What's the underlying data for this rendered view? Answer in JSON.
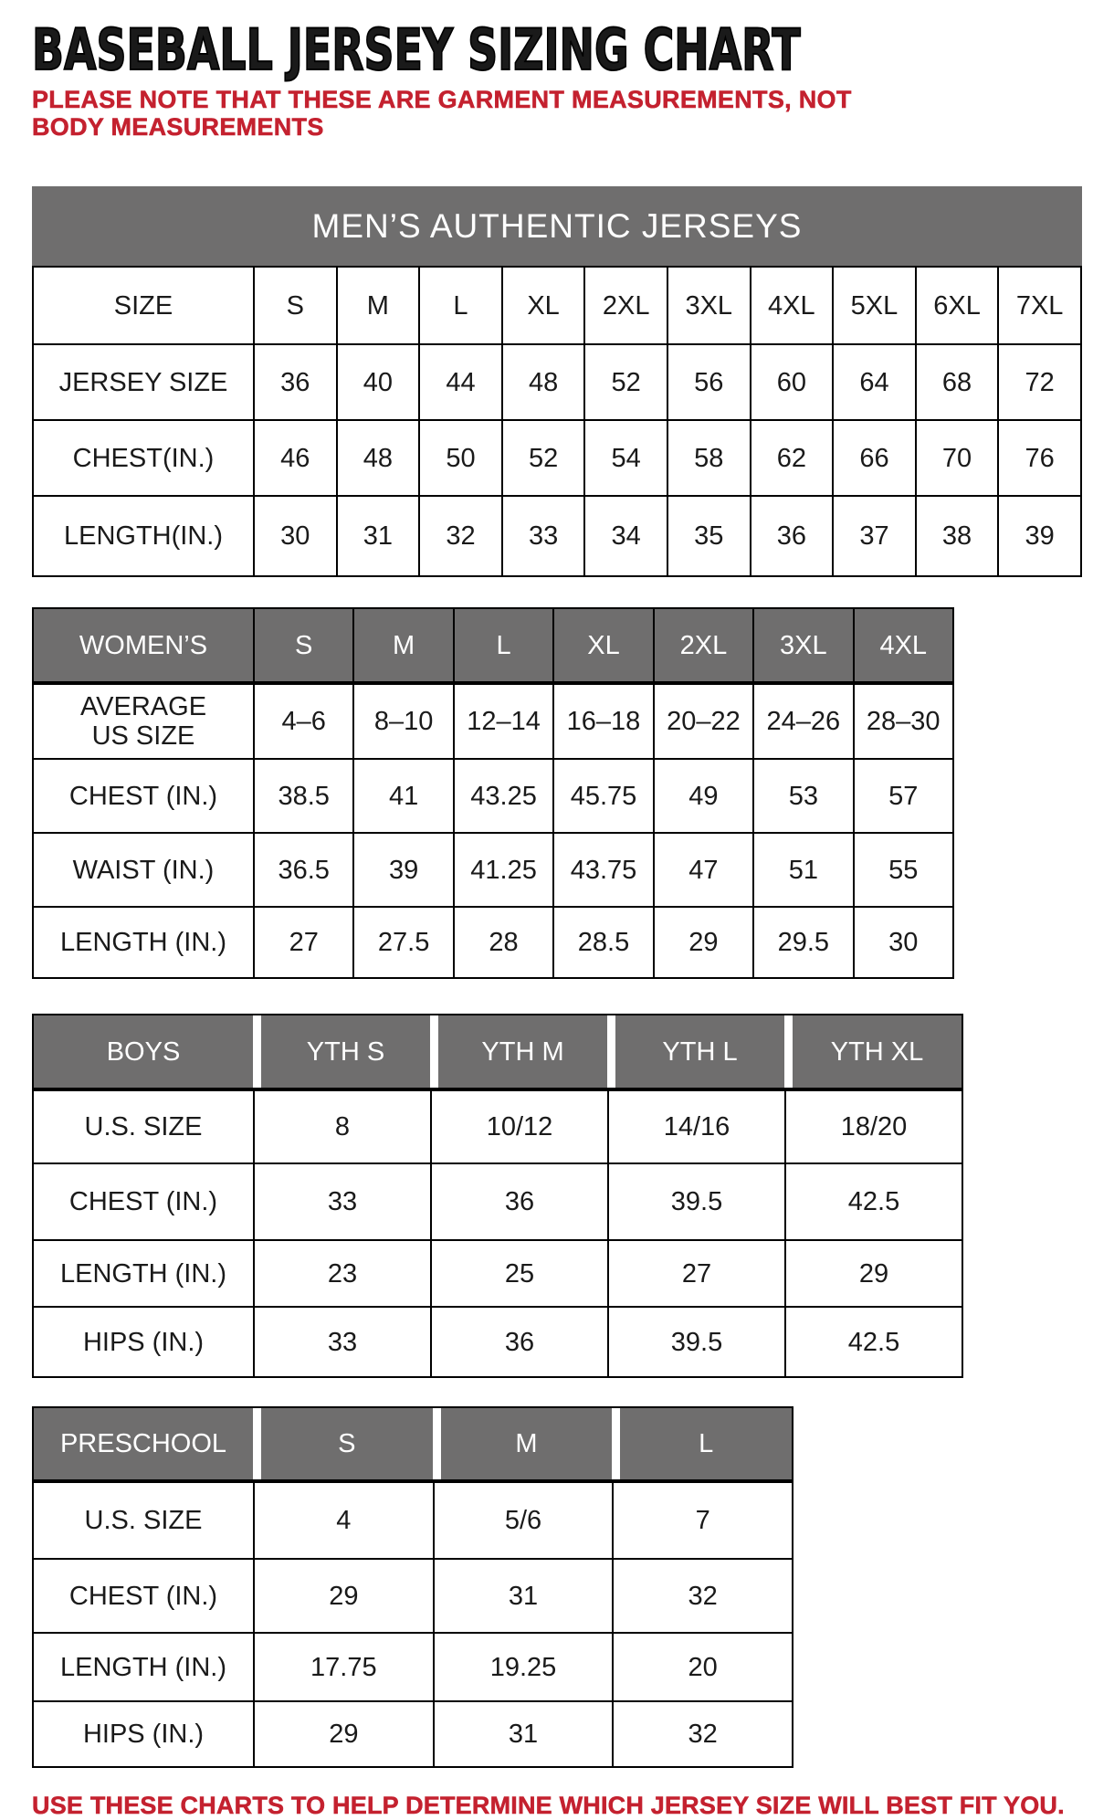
{
  "page": {
    "title": "BASEBALL JERSEY SIZING CHART",
    "note": "PLEASE NOTE THAT THESE ARE GARMENT MEASUREMENTS, NOT BODY MEASUREMENTS",
    "footer": "USE THESE CHARTS TO HELP DETERMINE WHICH JERSEY SIZE WILL BEST FIT YOU.",
    "colors": {
      "accent_red": "#c4212f",
      "header_gray": "#6f6e6e"
    }
  },
  "tables": {
    "mens": {
      "banner": "MEN’S AUTHENTIC JERSEYS",
      "rows": [
        {
          "type": "size-header",
          "cells": [
            "SIZE",
            "S",
            "M",
            "L",
            "XL",
            "2XL",
            "3XL",
            "4XL",
            "5XL",
            "6XL",
            "7XL"
          ]
        },
        {
          "type": "data",
          "cells": [
            "JERSEY SIZE",
            "36",
            "40",
            "44",
            "48",
            "52",
            "56",
            "60",
            "64",
            "68",
            "72"
          ]
        },
        {
          "type": "data",
          "cells": [
            "CHEST(IN.)",
            "46",
            "48",
            "50",
            "52",
            "54",
            "58",
            "62",
            "66",
            "70",
            "76"
          ]
        },
        {
          "type": "data",
          "cells": [
            "LENGTH(IN.)",
            "30",
            "31",
            "32",
            "33",
            "34",
            "35",
            "36",
            "37",
            "38",
            "39"
          ]
        }
      ]
    },
    "womens": {
      "rows": [
        {
          "type": "gray-header",
          "cells": [
            "WOMEN’S",
            "S",
            "M",
            "L",
            "XL",
            "2XL",
            "3XL",
            "4XL"
          ]
        },
        {
          "type": "data",
          "cells": [
            "AVERAGE\nUS SIZE",
            "4–6",
            "8–10",
            "12–14",
            "16–18",
            "20–22",
            "24–26",
            "28–30"
          ]
        },
        {
          "type": "data",
          "cells": [
            "CHEST (IN.)",
            "38.5",
            "41",
            "43.25",
            "45.75",
            "49",
            "53",
            "57"
          ]
        },
        {
          "type": "data",
          "cells": [
            "WAIST (IN.)",
            "36.5",
            "39",
            "41.25",
            "43.75",
            "47",
            "51",
            "55"
          ]
        },
        {
          "type": "data",
          "cells": [
            "LENGTH (IN.)",
            "27",
            "27.5",
            "28",
            "28.5",
            "29",
            "29.5",
            "30"
          ]
        }
      ]
    },
    "boys": {
      "rows": [
        {
          "type": "gray-header",
          "cells": [
            "BOYS",
            "YTH S",
            "YTH M",
            "YTH L",
            "YTH XL"
          ]
        },
        {
          "type": "data",
          "cells": [
            "U.S. SIZE",
            "8",
            "10/12",
            "14/16",
            "18/20"
          ]
        },
        {
          "type": "data",
          "cells": [
            "CHEST (IN.)",
            "33",
            "36",
            "39.5",
            "42.5"
          ]
        },
        {
          "type": "data",
          "cells": [
            "LENGTH (IN.)",
            "23",
            "25",
            "27",
            "29"
          ]
        },
        {
          "type": "data",
          "cells": [
            "HIPS (IN.)",
            "33",
            "36",
            "39.5",
            "42.5"
          ]
        }
      ]
    },
    "preschool": {
      "rows": [
        {
          "type": "gray-header",
          "cells": [
            "PRESCHOOL",
            "S",
            "M",
            "L"
          ]
        },
        {
          "type": "data",
          "cells": [
            "U.S. SIZE",
            "4",
            "5/6",
            "7"
          ]
        },
        {
          "type": "data",
          "cells": [
            "CHEST (IN.)",
            "29",
            "31",
            "32"
          ]
        },
        {
          "type": "data",
          "cells": [
            "LENGTH (IN.)",
            "17.75",
            "19.25",
            "20"
          ]
        },
        {
          "type": "data",
          "cells": [
            "HIPS (IN.)",
            "29",
            "31",
            "32"
          ]
        }
      ]
    }
  }
}
